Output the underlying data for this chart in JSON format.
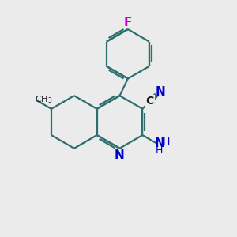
{
  "bg_color": "#ebebeb",
  "bond_color": "#2d6e6e",
  "n_color": "#0000cc",
  "f_color": "#cc00cc",
  "dark_color": "#1a1a1a",
  "figsize": [
    3.0,
    3.0
  ],
  "dpi": 100,
  "xlim": [
    0,
    10
  ],
  "ylim": [
    0,
    10
  ]
}
